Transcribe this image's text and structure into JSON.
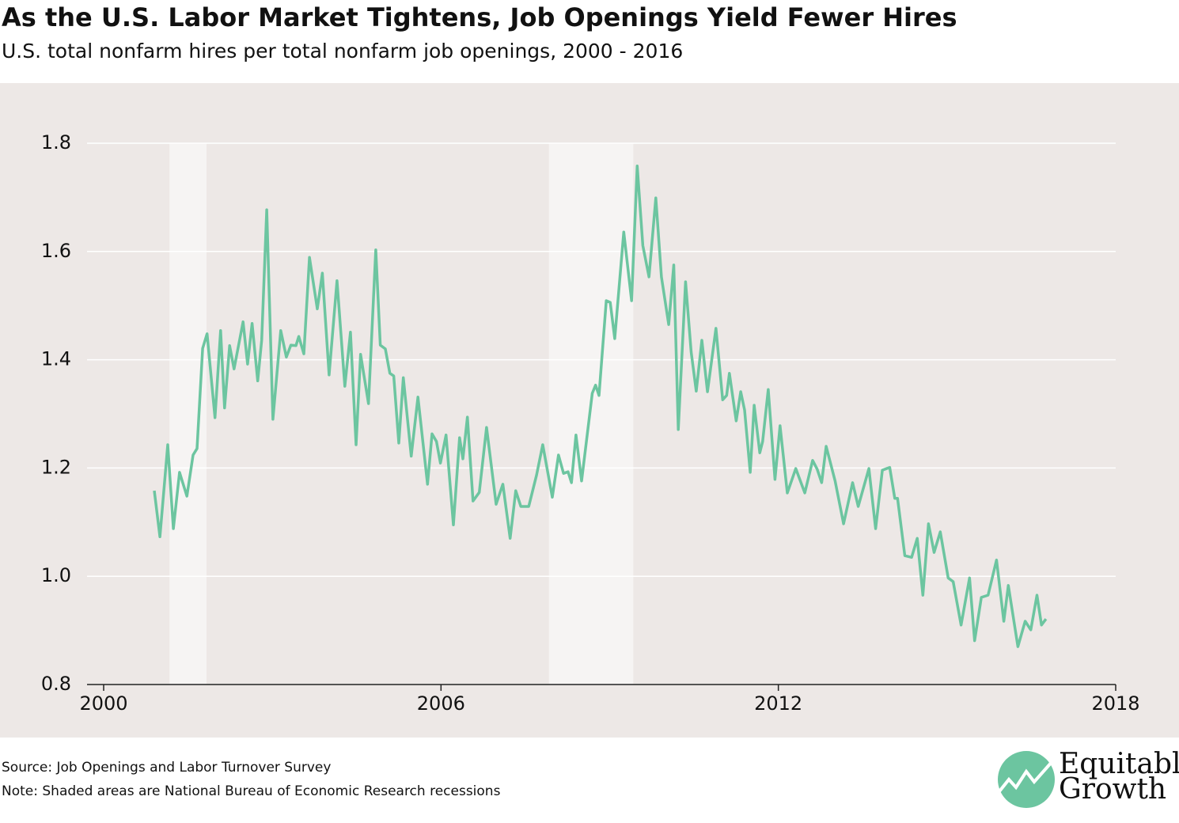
{
  "chart_data": {
    "type": "line",
    "title": "As the U.S. Labor Market Tightens, Job Openings Yield Fewer Hires",
    "subtitle": "U.S. total nonfarm hires per total nonfarm job openings, 2000 - 2016",
    "source": "Source: Job Openings and Labor Turnover Survey",
    "note": "Note: Shaded areas are National Bureau of Economic Research recessions",
    "logo": [
      "Equitable",
      "Growth"
    ],
    "xlim": [
      2000,
      2018
    ],
    "xticks": [
      2000,
      2006,
      2012,
      2018
    ],
    "ylim": [
      0.8,
      1.8
    ],
    "yticks": [
      0.8,
      {
        "value": 1,
        "label": "1.0"
      },
      1.2,
      1.4,
      1.6,
      1.8
    ],
    "grid": true,
    "recessions": [
      [
        2001.17,
        2001.83
      ],
      [
        2007.92,
        2009.42
      ]
    ],
    "recession_color": "#f6f4f3",
    "x": [
      2000.9,
      2001.0,
      2001.14,
      2001.24,
      2001.35,
      2001.48,
      2001.59,
      2001.66,
      2001.76,
      2001.84,
      2001.98,
      2002.08,
      2002.15,
      2002.24,
      2002.32,
      2002.48,
      2002.56,
      2002.64,
      2002.74,
      2002.81,
      2002.9,
      2003.01,
      2003.15,
      2003.25,
      2003.33,
      2003.42,
      2003.47,
      2003.56,
      2003.66,
      2003.8,
      2003.89,
      2004.01,
      2004.15,
      2004.29,
      2004.39,
      2004.49,
      2004.57,
      2004.71,
      2004.84,
      2004.92,
      2005.01,
      2005.09,
      2005.16,
      2005.25,
      2005.33,
      2005.47,
      2005.59,
      2005.76,
      2005.84,
      2005.92,
      2005.99,
      2006.09,
      2006.22,
      2006.33,
      2006.39,
      2006.47,
      2006.57,
      2006.68,
      2006.81,
      2006.98,
      2007.1,
      2007.23,
      2007.33,
      2007.42,
      2007.56,
      2007.7,
      2007.81,
      2007.98,
      2008.09,
      2008.18,
      2008.26,
      2008.32,
      2008.4,
      2008.5,
      2008.69,
      2008.75,
      2008.81,
      2008.94,
      2009.01,
      2009.09,
      2009.25,
      2009.39,
      2009.49,
      2009.59,
      2009.7,
      2009.82,
      2009.92,
      2010.05,
      2010.14,
      2010.22,
      2010.35,
      2010.45,
      2010.54,
      2010.64,
      2010.74,
      2010.89,
      2011.01,
      2011.08,
      2011.13,
      2011.25,
      2011.33,
      2011.4,
      2011.5,
      2011.57,
      2011.67,
      2011.72,
      2011.82,
      2011.94,
      2012.03,
      2012.16,
      2012.31,
      2012.47,
      2012.61,
      2012.69,
      2012.77,
      2012.85,
      2013.01,
      2013.16,
      2013.32,
      2013.42,
      2013.61,
      2013.73,
      2013.85,
      2013.98,
      2014.07,
      2014.12,
      2014.25,
      2014.37,
      2014.47,
      2014.57,
      2014.67,
      2014.77,
      2014.88,
      2015.02,
      2015.11,
      2015.25,
      2015.4,
      2015.49,
      2015.61,
      2015.73,
      2015.88,
      2016.01,
      2016.09,
      2016.26,
      2016.39,
      2016.49,
      2016.6,
      2016.68,
      2016.76
    ],
    "series": [
      {
        "color": "#6cc5a0",
        "values": [
          1.158,
          1.073,
          1.243,
          1.088,
          1.192,
          1.148,
          1.224,
          1.236,
          1.421,
          1.448,
          1.293,
          1.454,
          1.311,
          1.426,
          1.383,
          1.47,
          1.392,
          1.467,
          1.361,
          1.436,
          1.677,
          1.29,
          1.454,
          1.405,
          1.427,
          1.426,
          1.443,
          1.411,
          1.589,
          1.494,
          1.56,
          1.372,
          1.546,
          1.351,
          1.451,
          1.243,
          1.41,
          1.319,
          1.603,
          1.427,
          1.42,
          1.375,
          1.37,
          1.246,
          1.367,
          1.222,
          1.331,
          1.17,
          1.263,
          1.249,
          1.209,
          1.261,
          1.095,
          1.256,
          1.217,
          1.294,
          1.139,
          1.155,
          1.275,
          1.133,
          1.17,
          1.07,
          1.158,
          1.129,
          1.129,
          1.187,
          1.243,
          1.146,
          1.224,
          1.19,
          1.193,
          1.173,
          1.261,
          1.176,
          1.338,
          1.353,
          1.334,
          1.509,
          1.506,
          1.439,
          1.636,
          1.509,
          1.758,
          1.611,
          1.553,
          1.699,
          1.553,
          1.465,
          1.575,
          1.271,
          1.544,
          1.414,
          1.342,
          1.436,
          1.341,
          1.458,
          1.326,
          1.334,
          1.375,
          1.287,
          1.341,
          1.307,
          1.192,
          1.316,
          1.228,
          1.249,
          1.345,
          1.179,
          1.278,
          1.154,
          1.199,
          1.154,
          1.214,
          1.198,
          1.173,
          1.24,
          1.176,
          1.097,
          1.173,
          1.129,
          1.199,
          1.088,
          1.196,
          1.201,
          1.144,
          1.144,
          1.038,
          1.035,
          1.07,
          0.965,
          1.097,
          1.044,
          1.082,
          0.997,
          0.99,
          0.91,
          0.997,
          0.881,
          0.961,
          0.965,
          1.03,
          0.917,
          0.983,
          0.87,
          0.917,
          0.901,
          0.965,
          0.91,
          0.921
        ]
      }
    ]
  }
}
